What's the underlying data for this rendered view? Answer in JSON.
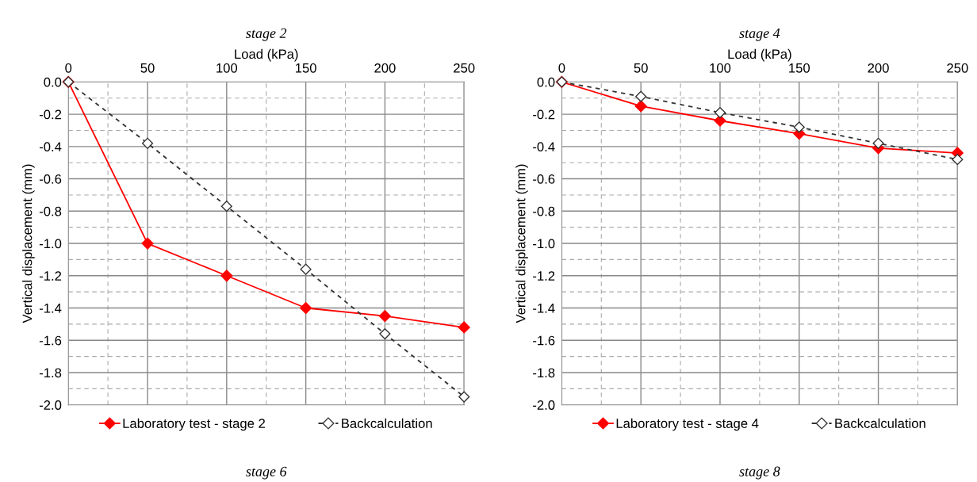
{
  "chart_data": [
    {
      "type": "line",
      "title": "stage 2",
      "xlabel": "Load (kPa)",
      "ylabel": "Vertical displacement (mm)",
      "x": [
        0,
        50,
        100,
        150,
        200,
        250
      ],
      "series": [
        {
          "name": "Laboratory test - stage 2",
          "color": "#ff0000",
          "marker": "diamond",
          "line_style": "solid",
          "values": [
            0,
            -1.0,
            -1.2,
            -1.4,
            -1.45,
            -1.52
          ]
        },
        {
          "name": "Backcalculation",
          "color": "#333333",
          "marker": "diamond",
          "line_style": "dashed",
          "values": [
            0,
            -0.38,
            -0.77,
            -1.16,
            -1.56,
            -1.95
          ]
        }
      ],
      "xlim": [
        0,
        250
      ],
      "xticks": [
        0,
        50,
        100,
        150,
        200,
        250
      ],
      "ylim": [
        -2.0,
        0
      ],
      "yticks": [
        {
          "value": 0,
          "label": "0.0"
        },
        -0.2,
        -0.4,
        -0.6,
        -0.8,
        {
          "value": -1,
          "label": "-1.0"
        },
        -1.2,
        -1.4,
        -1.6,
        -1.8,
        {
          "value": -2,
          "label": "-2.0"
        }
      ],
      "grid": true,
      "legend": "bottom",
      "annotations": [
        "stage 6"
      ]
    },
    {
      "type": "line",
      "title": "stage 4",
      "xlabel": "Load (kPa)",
      "ylabel": "Vertical displacement (mm)",
      "x": [
        0,
        50,
        100,
        150,
        200,
        250
      ],
      "series": [
        {
          "name": "Laboratory test - stage 4",
          "color": "#ff0000",
          "marker": "diamond",
          "line_style": "solid",
          "values": [
            0,
            -0.15,
            -0.24,
            -0.32,
            -0.41,
            -0.44
          ]
        },
        {
          "name": "Backcalculation",
          "color": "#333333",
          "marker": "diamond",
          "line_style": "dashed",
          "values": [
            0,
            -0.09,
            -0.19,
            -0.28,
            -0.38,
            -0.48
          ]
        }
      ],
      "xlim": [
        0,
        250
      ],
      "xticks": [
        0,
        50,
        100,
        150,
        200,
        250
      ],
      "ylim": [
        -2.0,
        0
      ],
      "yticks": [
        {
          "value": 0,
          "label": "0.0"
        },
        -0.2,
        -0.4,
        -0.6,
        -0.8,
        {
          "value": -1,
          "label": "-1.0"
        },
        -1.2,
        -1.4,
        -1.6,
        -1.8,
        {
          "value": -2,
          "label": "-2.0"
        }
      ],
      "grid": true,
      "legend": "bottom",
      "annotations": [
        "stage 8"
      ]
    }
  ]
}
